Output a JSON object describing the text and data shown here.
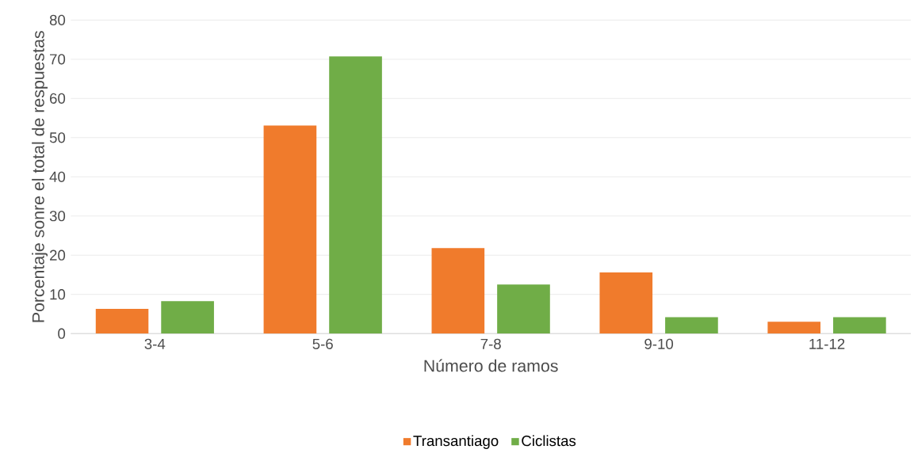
{
  "chart_data": {
    "type": "bar",
    "xlabel": "Número de ramos",
    "ylabel": "Porcentaje sonre el total de respuestas",
    "categories": [
      "3-4",
      "5-6",
      "7-8",
      "9-10",
      "11-12"
    ],
    "series": [
      {
        "name": "Transantiago",
        "color": "#f07b2c",
        "values": [
          6.3,
          53.1,
          21.8,
          15.6,
          3.0
        ]
      },
      {
        "name": "Ciclistas",
        "color": "#70ad47",
        "values": [
          8.3,
          70.7,
          12.5,
          4.2,
          4.2
        ]
      }
    ],
    "ylim": [
      0,
      80
    ],
    "yticks": [
      0,
      10,
      20,
      30,
      40,
      50,
      60,
      70,
      80
    ],
    "grid": "y",
    "legend": "bottom"
  }
}
